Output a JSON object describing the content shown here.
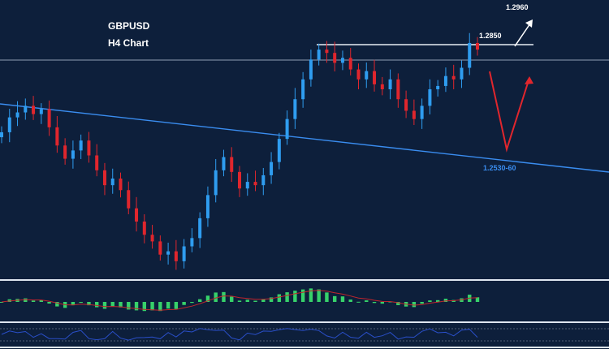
{
  "title": {
    "symbol": "GBPUSD",
    "timeframe": "H4 Chart"
  },
  "levels": {
    "resistance_label": "1.2850",
    "target_label": "1.2960",
    "support_label": "1.2530-60"
  },
  "colors": {
    "background": "#0d1f3b",
    "bull_candle": "#2f9df0",
    "bear_candle": "#e0262d",
    "trendline": "#3a8df0",
    "level_line": "#e8edf5",
    "projection_down": "#e0262d",
    "projection_up_alt": "#ffffff",
    "macd_hist": "#37d16a",
    "signal_line": "#c0262d",
    "rsi_line": "#2a4fc9"
  },
  "chart_data": {
    "type": "candlestick",
    "title": "GBPUSD",
    "subtitle": "H4 Chart",
    "xlabel": "",
    "ylabel": "",
    "ylim": [
      1.215,
      1.296
    ],
    "horizontal_levels": [
      {
        "label": "1.2850",
        "value": 1.285
      },
      {
        "label": "1.2530-60",
        "value": 1.2545
      }
    ],
    "projection": [
      1.285,
      1.2545,
      1.275
    ],
    "alt_target": {
      "label": "1.2960",
      "value": 1.296
    },
    "close_series": [
      1.256,
      1.2605,
      1.262,
      1.264,
      1.2615,
      1.263,
      1.2575,
      1.252,
      1.248,
      1.2505,
      1.2535,
      1.249,
      1.2445,
      1.24,
      1.242,
      1.2385,
      1.233,
      1.229,
      1.225,
      1.223,
      1.219,
      1.22,
      1.217,
      1.2215,
      1.224,
      1.23,
      1.237,
      1.2445,
      1.2485,
      1.244,
      1.239,
      1.241,
      1.24,
      1.243,
      1.247,
      1.254,
      1.26,
      1.266,
      1.272,
      1.278,
      1.281,
      1.28,
      1.277,
      1.2785,
      1.275,
      1.272,
      1.2745,
      1.2705,
      1.269,
      1.272,
      1.266,
      1.2625,
      1.26,
      1.264,
      1.269,
      1.27,
      1.273,
      1.272,
      1.2755,
      1.283,
      1.281
    ]
  }
}
